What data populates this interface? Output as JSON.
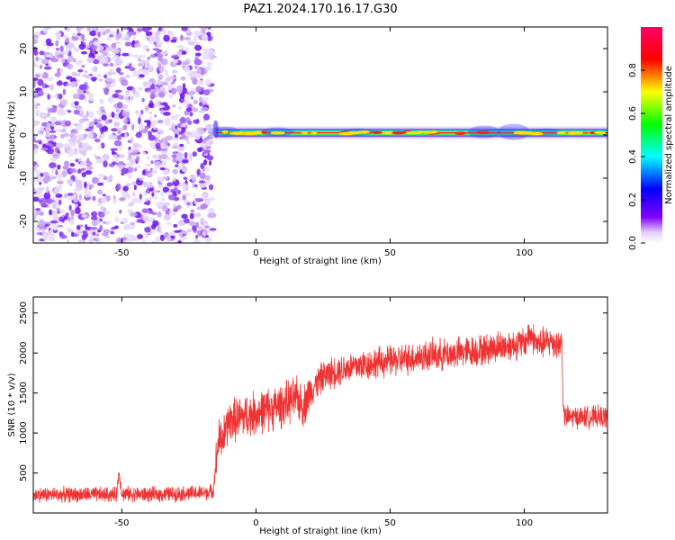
{
  "title": "PAZ1.2024.170.16.17.G30",
  "chart_data": [
    {
      "type": "heatmap",
      "xlabel": "Height of straight line (km)",
      "ylabel": "Frequency (Hz)",
      "xlim": [
        -83,
        131
      ],
      "ylim": [
        -25,
        25
      ],
      "xticks": [
        -50,
        0,
        50,
        100
      ],
      "yticks": [
        -20,
        -10,
        0,
        10,
        20
      ],
      "grid": false,
      "noise_region_x": [
        -83,
        -16
      ],
      "signal_region_x": [
        -16,
        131
      ],
      "signal_frequency_hz": 0.5,
      "colorbar": {
        "label": "Normalized spectral amplitude",
        "range": [
          0.0,
          1.0
        ],
        "ticks": [
          "0.0",
          "0.2",
          "0.4",
          "0.6",
          "0.8"
        ],
        "colormap": [
          "#ffffff",
          "#7f00ff",
          "#0000ff",
          "#00ffff",
          "#00ff00",
          "#ffff00",
          "#ff0000",
          "#ff007f"
        ]
      }
    },
    {
      "type": "line",
      "xlabel": "Height of straight line (km)",
      "ylabel": "SNR (10 * v/v)",
      "xlim": [
        -83,
        131
      ],
      "ylim": [
        0,
        2700
      ],
      "xticks": [
        -50,
        0,
        50,
        100
      ],
      "yticks": [
        500,
        1000,
        1500,
        2000,
        2500
      ],
      "grid": false,
      "series": [
        {
          "color": "#ee3333",
          "x": [
            -83,
            -70,
            -60,
            -52,
            -51,
            -50,
            -40,
            -30,
            -20,
            -16,
            -14,
            -12,
            -10,
            -5,
            0,
            5,
            10,
            15,
            18,
            20,
            22,
            25,
            30,
            35,
            40,
            45,
            50,
            55,
            60,
            65,
            70,
            75,
            80,
            85,
            90,
            95,
            100,
            102,
            105,
            110,
            113,
            114,
            114.5,
            115,
            120,
            125,
            131
          ],
          "y": [
            230,
            230,
            230,
            230,
            520,
            240,
            230,
            240,
            250,
            270,
            900,
            950,
            1150,
            1200,
            1250,
            1300,
            1350,
            1430,
            1350,
            1500,
            1600,
            1700,
            1780,
            1820,
            1850,
            1880,
            1900,
            1920,
            1950,
            1970,
            1980,
            2000,
            2020,
            2040,
            2080,
            2100,
            2120,
            2250,
            2100,
            2150,
            2100,
            2150,
            1300,
            1200,
            1200,
            1200,
            1200
          ]
        }
      ]
    }
  ]
}
